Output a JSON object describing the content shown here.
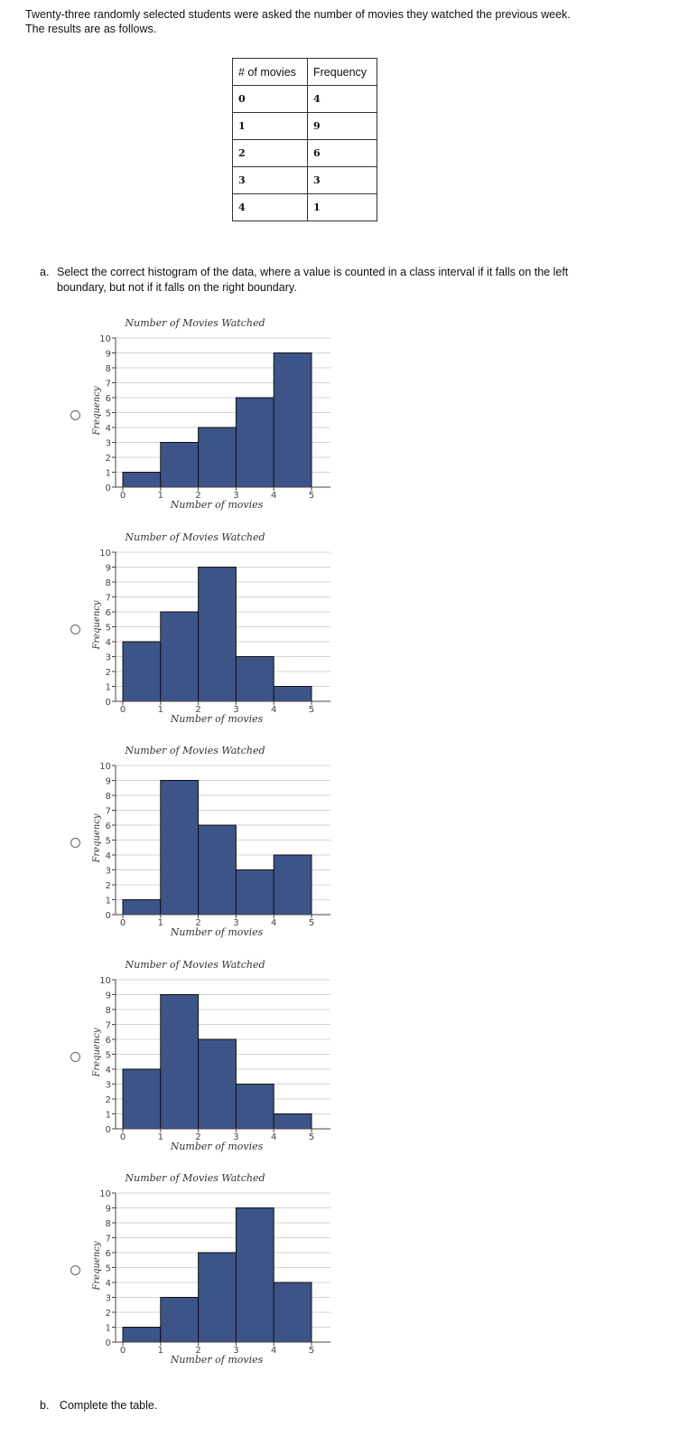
{
  "intro": {
    "line1": "Twenty-three randomly selected students were asked the number of movies they watched the previous week.",
    "line2": "The results are as follows."
  },
  "table": {
    "headers": [
      "# of movies",
      "Frequency"
    ],
    "rows": [
      [
        "0",
        "4"
      ],
      [
        "1",
        "9"
      ],
      [
        "2",
        "6"
      ],
      [
        "3",
        "3"
      ],
      [
        "4",
        "1"
      ]
    ]
  },
  "question_a": {
    "label": "a.",
    "text": "Select the correct histogram of the data, where a value is counted in a class interval if it falls on the left boundary, but not if it falls on the right boundary."
  },
  "chart_data": [
    {
      "type": "bar",
      "title": "Number of Movies Watched",
      "xlabel": "Number of movies",
      "ylabel": "Frequency",
      "bin_edges": [
        0,
        1,
        2,
        3,
        4,
        5
      ],
      "values": [
        1,
        3,
        4,
        6,
        9
      ],
      "ylim": [
        0,
        10
      ],
      "yticks": [
        0,
        1,
        2,
        3,
        4,
        5,
        6,
        7,
        8,
        9,
        10
      ]
    },
    {
      "type": "bar",
      "title": "Number of Movies Watched",
      "xlabel": "Number of movies",
      "ylabel": "Frequency",
      "bin_edges": [
        0,
        1,
        2,
        3,
        4,
        5
      ],
      "values": [
        4,
        6,
        9,
        3,
        1
      ],
      "ylim": [
        0,
        10
      ],
      "yticks": [
        0,
        1,
        2,
        3,
        4,
        5,
        6,
        7,
        8,
        9,
        10
      ]
    },
    {
      "type": "bar",
      "title": "Number of Movies Watched",
      "xlabel": "Number of movies",
      "ylabel": "Frequency",
      "bin_edges": [
        0,
        1,
        2,
        3,
        4,
        5
      ],
      "values": [
        1,
        9,
        6,
        3,
        4
      ],
      "ylim": [
        0,
        10
      ],
      "yticks": [
        0,
        1,
        2,
        3,
        4,
        5,
        6,
        7,
        8,
        9,
        10
      ]
    },
    {
      "type": "bar",
      "title": "Number of Movies Watched",
      "xlabel": "Number of movies",
      "ylabel": "Frequency",
      "bin_edges": [
        0,
        1,
        2,
        3,
        4,
        5
      ],
      "values": [
        4,
        9,
        6,
        3,
        1
      ],
      "ylim": [
        0,
        10
      ],
      "yticks": [
        0,
        1,
        2,
        3,
        4,
        5,
        6,
        7,
        8,
        9,
        10
      ]
    },
    {
      "type": "bar",
      "title": "Number of Movies Watched",
      "xlabel": "Number of movies",
      "ylabel": "Frequency",
      "bin_edges": [
        0,
        1,
        2,
        3,
        4,
        5
      ],
      "values": [
        1,
        3,
        6,
        9,
        4
      ],
      "ylim": [
        0,
        10
      ],
      "yticks": [
        0,
        1,
        2,
        3,
        4,
        5,
        6,
        7,
        8,
        9,
        10
      ]
    }
  ],
  "question_b": {
    "label": "b.",
    "text": "Complete the table."
  },
  "colors": {
    "bar_fill": "#3c5488",
    "bar_stroke": "#111111",
    "grid": "#d4d4d4"
  }
}
